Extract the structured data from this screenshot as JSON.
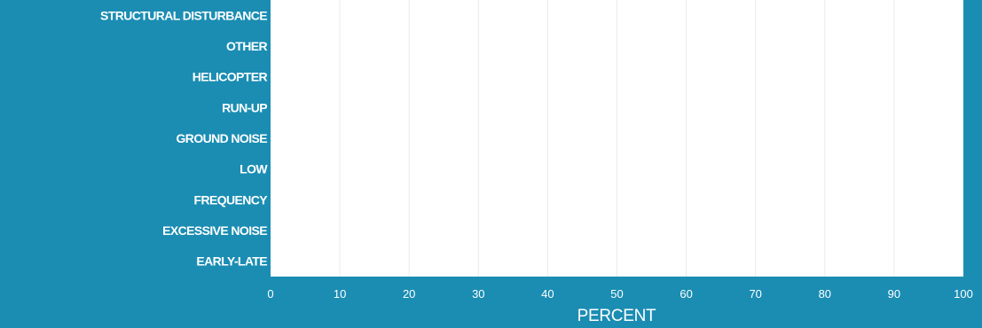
{
  "chart_data": {
    "type": "bar",
    "orientation": "horizontal",
    "categories": [
      "STRUCTURAL DISTURBANCE",
      "OTHER",
      "HELICOPTER",
      "RUN-UP",
      "GROUND NOISE",
      "LOW",
      "FREQUENCY",
      "EXCESSIVE NOISE",
      "EARLY-LATE"
    ],
    "values": [
      0,
      0,
      0,
      0,
      0,
      0,
      0,
      0,
      0
    ],
    "xlabel": "PERCENT",
    "xlim": [
      0,
      100
    ],
    "xticks": [
      "0",
      "10",
      "20",
      "30",
      "40",
      "50",
      "60",
      "70",
      "80",
      "90",
      "100"
    ],
    "grid": "vertical",
    "colors": {
      "background": "#1b8db3",
      "plot_area": "#ffffff",
      "grid": "#e6ebee",
      "text": "#ffffff"
    }
  }
}
